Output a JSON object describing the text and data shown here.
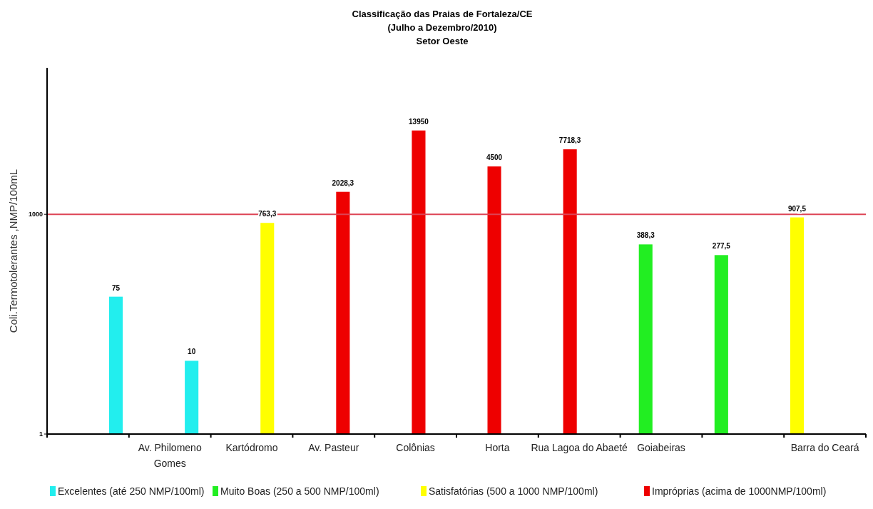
{
  "chart_data": {
    "type": "bar",
    "title": "Classificação das Praias de Fortaleza/CE\n(Julho a Dezembro/2010)\nSetor Oeste",
    "ylabel": "Coli.Termotolerantes ,NMP/100mL",
    "categories": [
      null,
      "Av. Philomeno Gomes",
      "Kartódromo",
      "Av. Pasteur",
      "Colônias",
      "Horta",
      "Rua Lagoa do Abaeté",
      "Goiabeiras",
      null,
      "Barra do Ceará"
    ],
    "log": true,
    "ylim": [
      1,
      100000
    ],
    "yticks": [
      1,
      1000
    ],
    "legend": "bottom",
    "series": [
      {
        "name": "Excelentes (até 250 NMP/100ml)",
        "color": "#22eeee",
        "values": [
          75,
          10,
          null,
          null,
          null,
          null,
          null,
          null,
          null,
          null
        ],
        "value_labels": [
          "75",
          "10",
          null,
          null,
          null,
          null,
          null,
          null,
          null,
          null
        ]
      },
      {
        "name": "Muito Boas (250 a 500 NMP/100ml)",
        "color": "#22ee22",
        "values": [
          null,
          null,
          null,
          null,
          null,
          null,
          null,
          388.3,
          277.5,
          null
        ],
        "value_labels": [
          null,
          null,
          null,
          null,
          null,
          null,
          null,
          "388,3",
          "277,5",
          null
        ]
      },
      {
        "name": "Satisfatórias (500 a 1000 NMP/100ml)",
        "color": "#ffff00",
        "values": [
          null,
          null,
          763.3,
          null,
          null,
          null,
          null,
          null,
          null,
          907.5
        ],
        "value_labels": [
          null,
          null,
          "763,3",
          null,
          null,
          null,
          null,
          null,
          null,
          "907,5"
        ]
      },
      {
        "name": "Impróprias (acima de 1000NMP/100ml)",
        "color": "#ee0000",
        "values": [
          null,
          null,
          null,
          2028.3,
          13950,
          4500,
          7718.3,
          null,
          null,
          null
        ],
        "value_labels": [
          null,
          null,
          null,
          "2028,3",
          "13950",
          "4500",
          "7718,3",
          null,
          null,
          null
        ]
      }
    ],
    "ref_lines": [
      {
        "axis": "y",
        "value": 1000,
        "color": "#dd4455",
        "line_style": "solid"
      }
    ]
  }
}
